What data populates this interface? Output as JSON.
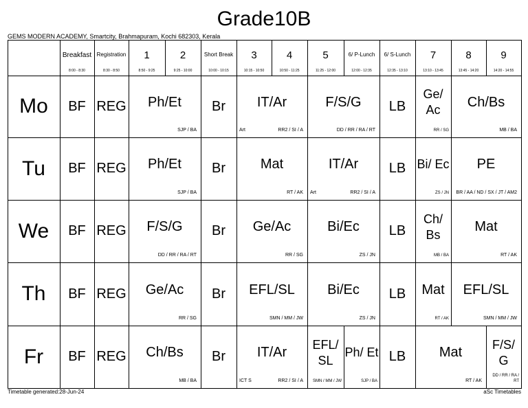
{
  "title": "Grade10B",
  "school": "GEMS MODERN ACADEMY, Smartcity, Brahmapuram, Kochi 682303, Kerala",
  "periods": [
    {
      "name": "Breakfast",
      "time": "8:00 - 8:30"
    },
    {
      "name": "Registration",
      "time": "8:30 - 8:50"
    },
    {
      "name": "1",
      "time": "8:50 - 9:25"
    },
    {
      "name": "2",
      "time": "9:25 - 10:00"
    },
    {
      "name": "Short Break",
      "time": "10:00 - 10:15"
    },
    {
      "name": "3",
      "time": "10:15 - 10:50"
    },
    {
      "name": "4",
      "time": "10:50 - 11:25"
    },
    {
      "name": "5",
      "time": "11:25 - 12:00"
    },
    {
      "name": "6/ P-Lunch",
      "time": "12:00 - 12:35"
    },
    {
      "name": "6/ S-Lunch",
      "time": "12:35 - 13:10"
    },
    {
      "name": "7",
      "time": "13:10 - 13:45"
    },
    {
      "name": "8",
      "time": "13:45 - 14:20"
    },
    {
      "name": "9",
      "time": "14:20 - 14:55"
    }
  ],
  "days": [
    "Mo",
    "Tu",
    "We",
    "Th",
    "Fr"
  ],
  "lessons": [
    [
      {
        "subject": "BF"
      },
      {
        "subject": "REG"
      },
      {
        "subject": "Ph/Et",
        "teachers": "SJP / BA"
      },
      {
        "subject": "Br"
      },
      {
        "subject": "IT/Ar",
        "room": "Art",
        "teachers": "RR2 / SI / A"
      },
      {
        "subject": "F/S/G",
        "teachers": "DD / RR / RA / RT"
      },
      {
        "subject": "LB"
      },
      {
        "subject": "Ge/ Ac",
        "teachers": "RR / SG"
      },
      {
        "subject": "Ch/Bs",
        "teachers": "MB / BA"
      }
    ],
    [
      {
        "subject": "BF"
      },
      {
        "subject": "REG"
      },
      {
        "subject": "Ph/Et",
        "teachers": "SJP / BA"
      },
      {
        "subject": "Br"
      },
      {
        "subject": "Mat",
        "teachers": "RT / AK"
      },
      {
        "subject": "IT/Ar",
        "room": "Art",
        "teachers": "RR2 / SI / A"
      },
      {
        "subject": "LB"
      },
      {
        "subject": "Bi/ Ec",
        "teachers": "ZS / JN"
      },
      {
        "subject": "PE",
        "teachers": "BR / AA / ND / SX / JT / AM2"
      }
    ],
    [
      {
        "subject": "BF"
      },
      {
        "subject": "REG"
      },
      {
        "subject": "F/S/G",
        "teachers": "DD / RR / RA / RT"
      },
      {
        "subject": "Br"
      },
      {
        "subject": "Ge/Ac",
        "teachers": "RR / SG"
      },
      {
        "subject": "Bi/Ec",
        "teachers": "ZS / JN"
      },
      {
        "subject": "LB"
      },
      {
        "subject": "Ch/ Bs",
        "teachers": "MB / BA"
      },
      {
        "subject": "Mat",
        "teachers": "RT / AK"
      }
    ],
    [
      {
        "subject": "BF"
      },
      {
        "subject": "REG"
      },
      {
        "subject": "Ge/Ac",
        "teachers": "RR / SG"
      },
      {
        "subject": "Br"
      },
      {
        "subject": "EFL/SL",
        "teachers": "SMN / MM / JW"
      },
      {
        "subject": "Bi/Ec",
        "teachers": "ZS / JN"
      },
      {
        "subject": "LB"
      },
      {
        "subject": "Mat",
        "teachers": "RT / AK"
      },
      {
        "subject": "EFL/SL",
        "teachers": "SMN / MM / JW"
      }
    ],
    [
      {
        "subject": "BF"
      },
      {
        "subject": "REG"
      },
      {
        "subject": "Ch/Bs",
        "teachers": "MB / BA"
      },
      {
        "subject": "Br"
      },
      {
        "subject": "IT/Ar",
        "room": "ICT S",
        "teachers": "RR2 / SI / A"
      },
      {
        "subject": "EFL/ SL",
        "teachers": "SMN / MM / JW"
      },
      {
        "subject": "Ph/ Et",
        "teachers": "SJP / BA"
      },
      {
        "subject": "LB"
      },
      {
        "subject": "Mat",
        "teachers": "RT / AK"
      },
      {
        "subject": "F/S/ G",
        "teachers": "DD / RR / RA / RT"
      }
    ]
  ],
  "footer": {
    "generated": "Timetable generated:28-Jun-24",
    "brand": "aSc Timetables"
  }
}
